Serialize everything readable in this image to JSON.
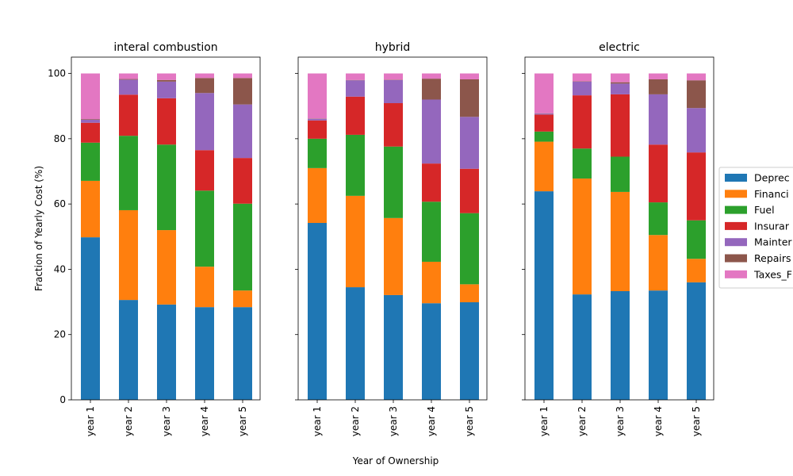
{
  "figure": {
    "ylabel": "Fraction of Yearly Cost (%)",
    "xlabel": "Year of Ownership"
  },
  "legend": {
    "placement": "right",
    "entries": [
      {
        "label": "Deprec",
        "color": "#1f77b4"
      },
      {
        "label": "Financi",
        "color": "#ff7f0e"
      },
      {
        "label": "Fuel",
        "color": "#2ca02c"
      },
      {
        "label": "Insurar",
        "color": "#d62728"
      },
      {
        "label": "Mainter",
        "color": "#9467bd"
      },
      {
        "label": "Repairs",
        "color": "#8c564b"
      },
      {
        "label": "Taxes_F",
        "color": "#e377c2"
      }
    ]
  },
  "chart_data": [
    {
      "type": "bar",
      "stacked": true,
      "title": "interal combustion",
      "categories": [
        "year 1",
        "year 2",
        "year 3",
        "year 4",
        "year 5"
      ],
      "ylim": [
        0,
        105
      ],
      "yticks": [
        0,
        20,
        40,
        60,
        80,
        100
      ],
      "series": [
        {
          "name": "Deprec",
          "values": [
            49.8,
            30.6,
            29.2,
            28.4,
            28.4
          ]
        },
        {
          "name": "Financi",
          "values": [
            17.3,
            27.5,
            22.8,
            12.4,
            5.1
          ]
        },
        {
          "name": "Fuel",
          "values": [
            11.7,
            22.8,
            26.2,
            23.3,
            26.6
          ]
        },
        {
          "name": "Insurar",
          "values": [
            6.1,
            12.6,
            14.2,
            12.4,
            14.0
          ]
        },
        {
          "name": "Mainter",
          "values": [
            0.9,
            4.6,
            5.1,
            17.5,
            16.4
          ]
        },
        {
          "name": "Repairs",
          "values": [
            0.2,
            0.2,
            0.5,
            4.6,
            8.1
          ]
        },
        {
          "name": "Taxes_F",
          "values": [
            14.0,
            1.7,
            2.0,
            1.4,
            1.4
          ]
        }
      ]
    },
    {
      "type": "bar",
      "stacked": true,
      "title": "hybrid",
      "categories": [
        "year 1",
        "year 2",
        "year 3",
        "year 4",
        "year 5"
      ],
      "ylim": [
        0,
        105
      ],
      "yticks": [
        0,
        20,
        40,
        60,
        80,
        100
      ],
      "series": [
        {
          "name": "Deprec",
          "values": [
            54.2,
            34.5,
            32.1,
            29.6,
            29.9
          ]
        },
        {
          "name": "Financi",
          "values": [
            16.8,
            28.0,
            23.6,
            12.7,
            5.5
          ]
        },
        {
          "name": "Fuel",
          "values": [
            9.0,
            18.7,
            21.9,
            18.4,
            21.8
          ]
        },
        {
          "name": "Insurar",
          "values": [
            5.6,
            11.7,
            13.3,
            11.7,
            13.6
          ]
        },
        {
          "name": "Mainter",
          "values": [
            0.5,
            5.0,
            7.1,
            19.6,
            15.9
          ]
        },
        {
          "name": "Repairs",
          "values": [
            0.1,
            0.1,
            0.1,
            6.4,
            11.5
          ]
        },
        {
          "name": "Taxes_F",
          "values": [
            13.8,
            2.0,
            1.9,
            1.6,
            1.8
          ]
        }
      ]
    },
    {
      "type": "bar",
      "stacked": true,
      "title": "electric",
      "categories": [
        "year 1",
        "year 2",
        "year 3",
        "year 4",
        "year 5"
      ],
      "ylim": [
        0,
        105
      ],
      "yticks": [
        0,
        20,
        40,
        60,
        80,
        100
      ],
      "series": [
        {
          "name": "Deprec",
          "values": [
            63.9,
            32.3,
            33.3,
            33.5,
            36.0
          ]
        },
        {
          "name": "Financi",
          "values": [
            15.2,
            35.5,
            30.4,
            17.0,
            7.2
          ]
        },
        {
          "name": "Fuel",
          "values": [
            3.1,
            9.2,
            10.8,
            10.0,
            11.8
          ]
        },
        {
          "name": "Insurar",
          "values": [
            5.2,
            16.3,
            19.1,
            17.7,
            20.8
          ]
        },
        {
          "name": "Mainter",
          "values": [
            0.3,
            4.2,
            3.3,
            15.4,
            13.6
          ]
        },
        {
          "name": "Repairs",
          "values": [
            0.1,
            0.1,
            0.4,
            4.6,
            8.5
          ]
        },
        {
          "name": "Taxes_F",
          "values": [
            12.2,
            2.4,
            2.7,
            1.8,
            2.1
          ]
        }
      ]
    }
  ]
}
